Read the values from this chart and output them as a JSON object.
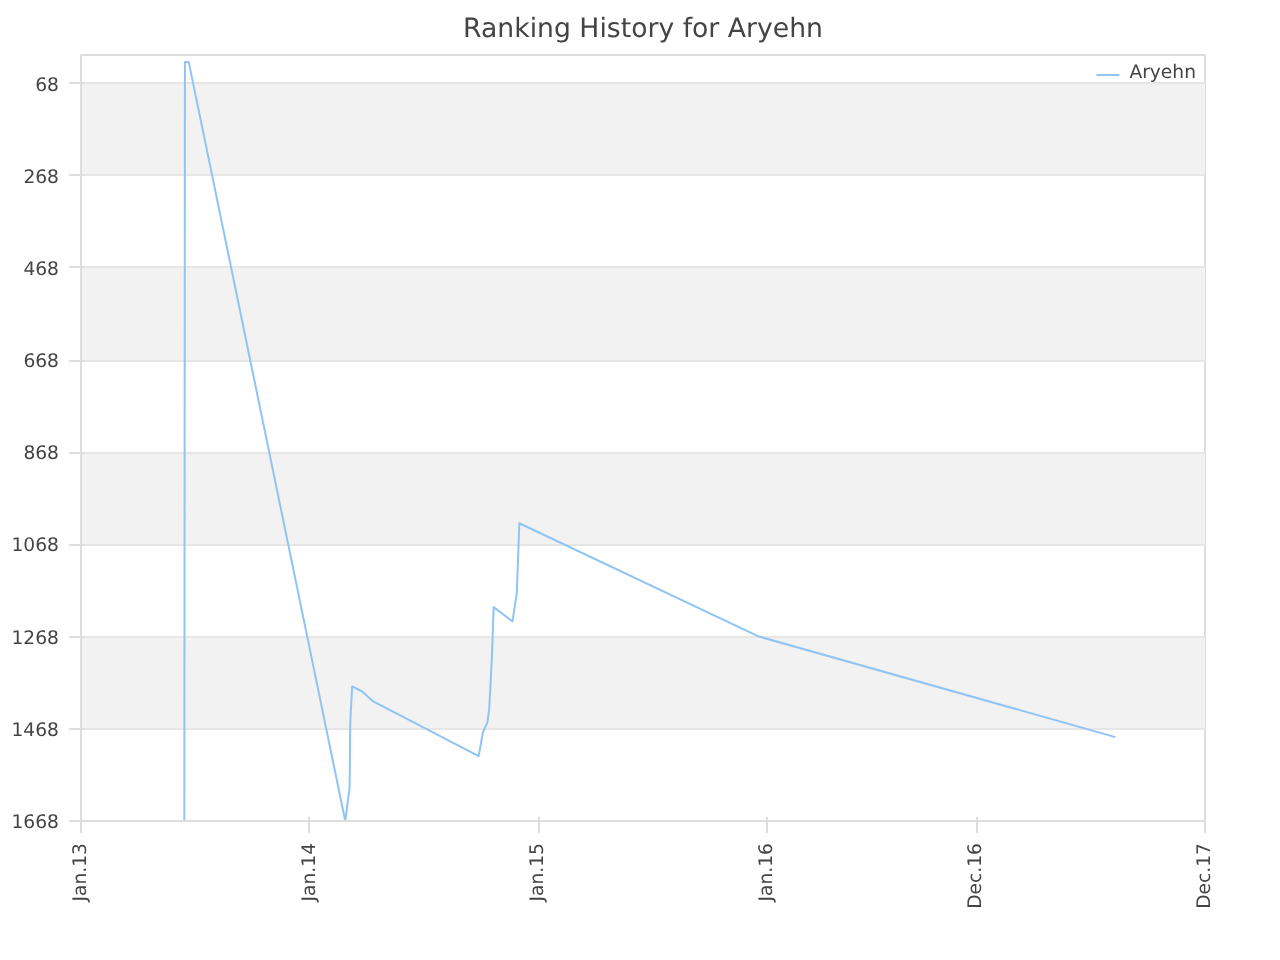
{
  "chart_data": {
    "type": "line",
    "title": "Ranking History for Aryehn",
    "x": [
      "2013-06-15",
      "2013-06-16",
      "2013-06-22",
      "2014-02-27",
      "2014-03-06",
      "2014-03-07",
      "2014-03-10",
      "2014-03-26",
      "2014-04-12",
      "2014-09-28",
      "2014-10-05",
      "2014-10-12",
      "2014-10-15",
      "2014-10-19",
      "2014-10-22",
      "2014-11-21",
      "2014-11-28",
      "2014-12-02",
      "2015-12-18",
      "2017-07-11"
    ],
    "series": [
      {
        "name": "Aryehn",
        "color": "#90c4f5",
        "values": [
          1668,
          21,
          21,
          1668,
          1595,
          1454,
          1376,
          1387,
          1408,
          1527,
          1475,
          1454,
          1423,
          1319,
          1204,
          1235,
          1173,
          1022,
          1267,
          1486
        ]
      }
    ],
    "xlim": [
      "2013-01-01",
      "2017-12-01"
    ],
    "xticks": [
      {
        "value": "2013-01-01",
        "label": "Jan.13"
      },
      {
        "value": "2014-01-01",
        "label": "Jan.14"
      },
      {
        "value": "2015-01-01",
        "label": "Jan.15"
      },
      {
        "value": "2016-01-01",
        "label": "Jan.16"
      },
      {
        "value": "2016-12-01",
        "label": "Dec.16"
      },
      {
        "value": "2017-12-01",
        "label": "Dec.17"
      }
    ],
    "ylim": [
      1668,
      6
    ],
    "yticks": [
      68,
      268,
      468,
      668,
      868,
      1068,
      1268,
      1468,
      1668
    ],
    "grid": "y",
    "legend": "top right",
    "marker": "none",
    "line_style": "solid"
  }
}
